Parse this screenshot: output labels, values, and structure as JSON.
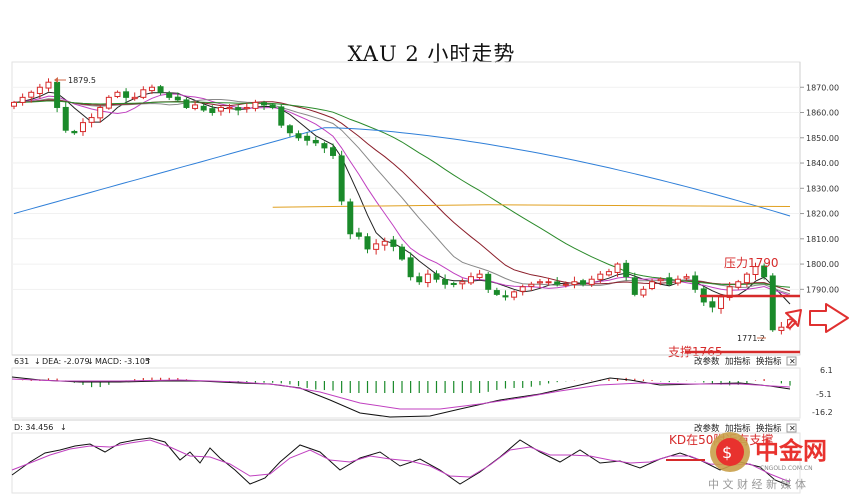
{
  "chart_data": {
    "type": "candlestick",
    "title": "XAU 2 小时走势",
    "price_axis": {
      "ticks": [
        "1870.00",
        "1860.00",
        "1850.00",
        "1840.00",
        "1830.00",
        "1820.00",
        "1810.00",
        "1800.00",
        "1790.00"
      ],
      "range": [
        1764,
        1880
      ]
    },
    "annotations": {
      "high_marker": "1879.5",
      "low_marker": "1771.2",
      "pressure": "压力1790",
      "support": "支撑1765",
      "kd_note": "KD在50附近有支撑"
    },
    "series_color": {
      "up": "#d62a2a",
      "down": "#1a8a2a",
      "ma_blue": "#2f7fd8",
      "ma_orange": "#e0a020",
      "ma_green": "#2a8a2a",
      "ma_darkred": "#8b1e2a",
      "ma_gray": "#888888",
      "ma_magenta": "#c040c0",
      "ma_black": "#222222"
    },
    "close": [
      1864,
      1866,
      1868,
      1870,
      1872,
      1862,
      1853,
      1852,
      1856,
      1858,
      1862,
      1866,
      1868,
      1866,
      1866,
      1869,
      1870,
      1868,
      1866,
      1865,
      1862,
      1863,
      1861,
      1860,
      1862,
      1862,
      1861,
      1862,
      1864,
      1863,
      1862,
      1855,
      1852,
      1850,
      1849,
      1848,
      1846,
      1843,
      1825,
      1812,
      1811,
      1806,
      1808,
      1809,
      1807,
      1802,
      1795,
      1793,
      1796,
      1794,
      1792,
      1792,
      1793,
      1795,
      1796,
      1790,
      1788,
      1787,
      1789,
      1791,
      1792,
      1793,
      1793,
      1792,
      1792,
      1793,
      1792,
      1794,
      1796,
      1797,
      1800,
      1795,
      1788,
      1790,
      1793,
      1794,
      1792,
      1794,
      1795,
      1790,
      1785,
      1783,
      1787,
      1791,
      1793,
      1796,
      1799,
      1795,
      1774,
      1775,
      1778
    ],
    "macd_panel": {
      "header": "631",
      "dea": "DEA: -2.079",
      "macd": "MACD: -3.105",
      "axis": [
        "6.1",
        "-5.1",
        "-16.2"
      ],
      "buttons": [
        "改参数",
        "加指标",
        "换指标"
      ]
    },
    "kd_panel": {
      "header": "D: 34.456",
      "buttons": [
        "改参数",
        "加指标",
        "换指标"
      ]
    }
  },
  "watermark": {
    "brand": "中金网",
    "site": "CNGOLD.COM.CN",
    "tagline": "中 文 财 经 新 媒 体"
  }
}
